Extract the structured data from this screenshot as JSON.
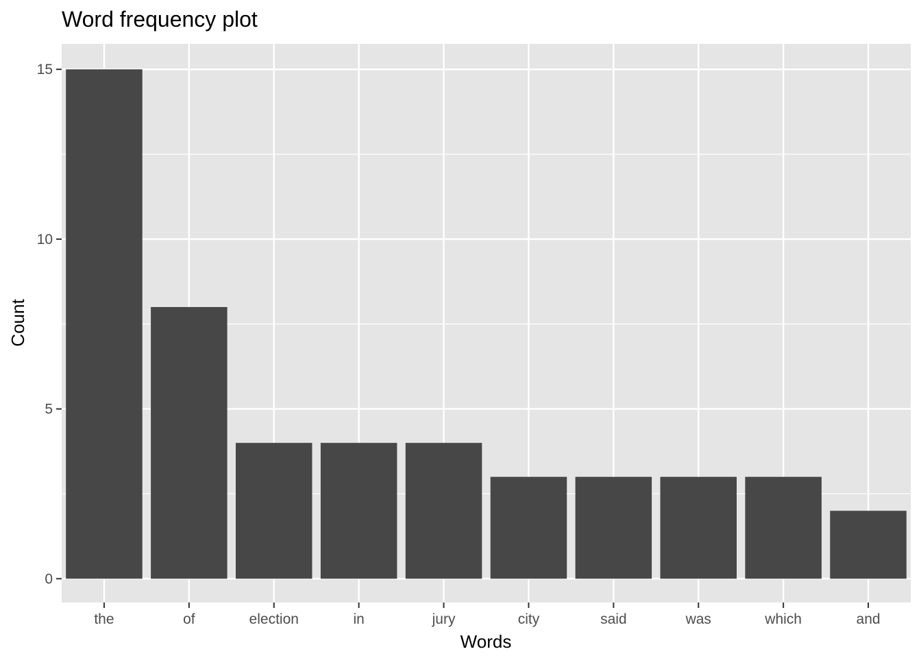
{
  "chart_data": {
    "type": "bar",
    "title": "Word frequency plot",
    "xlabel": "Words",
    "ylabel": "Count",
    "categories": [
      "the",
      "of",
      "election",
      "in",
      "jury",
      "city",
      "said",
      "was",
      "which",
      "and"
    ],
    "values": [
      15,
      8,
      4,
      4,
      4,
      3,
      3,
      3,
      3,
      2
    ],
    "ylim": [
      -0.7,
      15.75
    ],
    "yticks": [
      0,
      5,
      10,
      15
    ],
    "grid": true,
    "legend": "none",
    "colors": {
      "bar": "#474747",
      "panel": "#e5e5e5",
      "grid": "#ffffff",
      "tick": "#333333"
    }
  }
}
